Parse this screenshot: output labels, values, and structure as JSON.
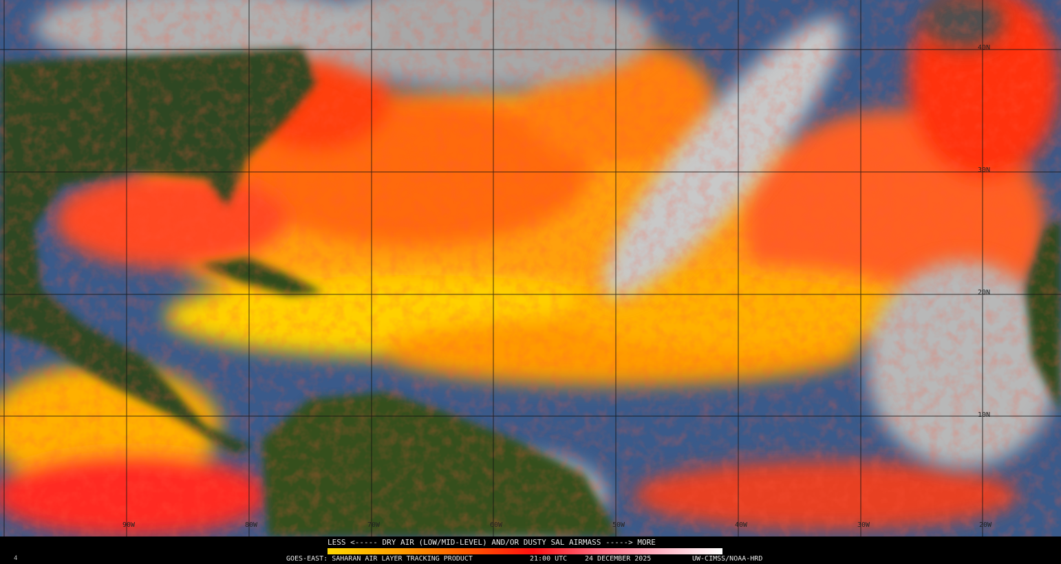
{
  "map": {
    "longitude_labels": [
      "90W",
      "80W",
      "70W",
      "60W",
      "50W",
      "40W",
      "30W",
      "20W"
    ],
    "latitude_labels": [
      "40N",
      "30N",
      "20N",
      "10N"
    ]
  },
  "legend": {
    "scale_text": "LESS <----- DRY AIR (LOW/MID-LEVEL) AND/OR DUSTY SAL AIRMASS -----> MORE",
    "colors": [
      "#ffd800",
      "#ffa000",
      "#ff5a00",
      "#ff1010",
      "#ff6a80",
      "#ffb8c8",
      "#ffffff"
    ]
  },
  "footer": {
    "product": "GOES-EAST: SAHARAN AIR LAYER TRACKING PRODUCT",
    "time": "21:00 UTC",
    "date": "24 DECEMBER 2025",
    "credit": "UW-CIMSS/NOAA-HRD",
    "frame": "4"
  }
}
